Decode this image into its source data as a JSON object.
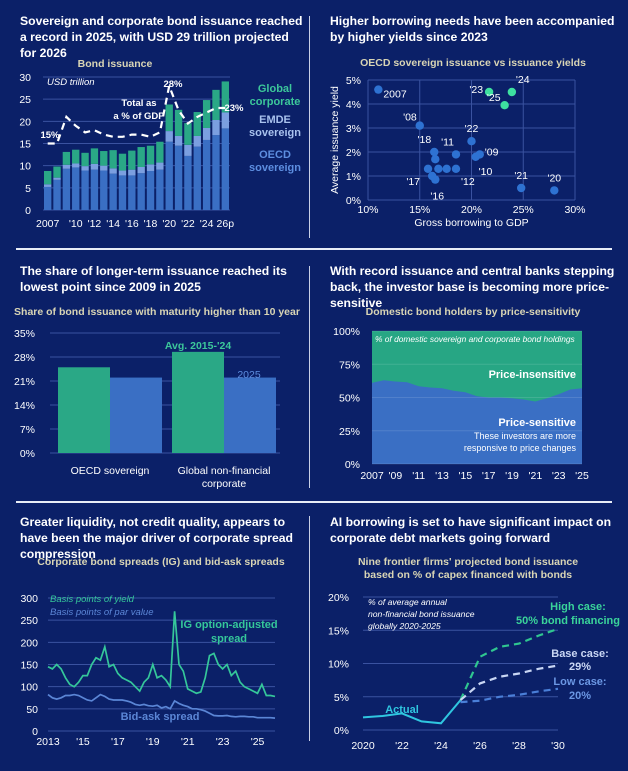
{
  "colors": {
    "background": "#0b2068",
    "green": "#2aa886",
    "green_text": "#3cc79a",
    "blue": "#3a6fc4",
    "light_blue": "#7b9fe0",
    "grid": "#3a52a0",
    "subtitle": "#d9d5b5"
  },
  "panels": [
    {
      "title": "Sovereign and corporate bond issuance reached a record in 2025, with USD 29 trillion projected for 2026",
      "subtitle": "Bond issuance"
    },
    {
      "title": "Higher borrowing needs have been accompanied by higher yields since 2023",
      "subtitle": "OECD sovereign issuance vs issuance yields"
    },
    {
      "title": "The share of longer-term issuance reached its lowest point since 2009 in 2025",
      "subtitle": "Share of bond issuance with maturity higher than 10 year"
    },
    {
      "title": "With record issuance and central banks stepping back, the investor base is becoming more price-sensitive",
      "subtitle": "Domestic bond holders by price-sensitivity"
    },
    {
      "title": "Greater liquidity, not credit quality, appears to have been the major driver of corporate spread compression",
      "subtitle": "Corporate bond spreads (IG) and bid-ask spreads"
    },
    {
      "title": "AI borrowing is set to have significant impact on corporate debt markets going forward",
      "subtitle": "Nine frontier firms' projected bond issuance based on % of capex financed with bonds"
    }
  ],
  "chart_data": [
    {
      "type": "bar",
      "stacked": true,
      "title": "Bond issuance",
      "unit_label": "USD trillion",
      "ylim": [
        0,
        30
      ],
      "yticks": [
        0,
        5,
        10,
        15,
        20,
        25,
        30
      ],
      "categories": [
        "2007",
        "2008",
        "2009",
        "2010",
        "2011",
        "2012",
        "2013",
        "2014",
        "2015",
        "2016",
        "2017",
        "2018",
        "2019",
        "2020",
        "2021",
        "2022",
        "2023",
        "2024",
        "2025",
        "2026p"
      ],
      "x_ticks": [
        {
          "label": "2007",
          "index": 0
        },
        {
          "label": "'10",
          "index": 3
        },
        {
          "label": "'12",
          "index": 5
        },
        {
          "label": "'14",
          "index": 7
        },
        {
          "label": "'16",
          "index": 9
        },
        {
          "label": "'18",
          "index": 11
        },
        {
          "label": "'20",
          "index": 13
        },
        {
          "label": "'22",
          "index": 15
        },
        {
          "label": "'24",
          "index": 17
        },
        {
          "label": "26p",
          "index": 19
        }
      ],
      "series": [
        {
          "name": "OECD sovereign",
          "legend": [
            "OECD",
            "sovereign"
          ],
          "values": [
            5.2,
            6.8,
            9.3,
            9.6,
            8.9,
            9.1,
            8.9,
            8.2,
            7.8,
            7.8,
            8.3,
            8.8,
            9.1,
            15.4,
            14.5,
            12.2,
            14.3,
            15.8,
            16.9,
            18.4
          ]
        },
        {
          "name": "EMDE sovereign",
          "legend": [
            "EMDE",
            "sovereign"
          ],
          "values": [
            0.6,
            0.5,
            0.9,
            0.9,
            1.0,
            1.3,
            1.1,
            1.2,
            1.1,
            1.3,
            1.4,
            1.5,
            1.6,
            2.4,
            2.2,
            2.5,
            2.4,
            2.7,
            3.4,
            3.6
          ]
        },
        {
          "name": "Global corporate",
          "legend": [
            "Global",
            "corporate"
          ],
          "values": [
            3.0,
            2.5,
            2.9,
            3.1,
            3.0,
            3.5,
            3.3,
            4.1,
            3.8,
            4.3,
            4.5,
            4.2,
            4.7,
            6.0,
            5.9,
            4.9,
            5.4,
            6.3,
            6.8,
            7.0
          ]
        }
      ],
      "gdp_line": {
        "name": "Total as a % of GDP",
        "label_lines": [
          "Total as",
          "a % of GDP"
        ],
        "values": [
          15,
          15,
          21,
          19,
          17.5,
          18,
          17,
          16.5,
          16.5,
          17,
          17,
          16.5,
          17.5,
          28,
          22.5,
          19.5,
          21,
          22,
          23,
          23
        ],
        "annotations": [
          "15%",
          "28%",
          "23%"
        ]
      }
    },
    {
      "type": "scatter",
      "title": "OECD sovereign issuance vs issuance yields",
      "xlabel": "Gross borrowing to GDP",
      "ylabel": "Average issuance yield",
      "xlim": [
        10,
        30
      ],
      "ylim": [
        0,
        5
      ],
      "xticks": [
        "10%",
        "15%",
        "20%",
        "25%",
        "30%"
      ],
      "yticks": [
        "0%",
        "1%",
        "2%",
        "3%",
        "4%",
        "5%"
      ],
      "points": [
        {
          "label": "2007",
          "x": 11,
          "y": 4.6,
          "highlight": false
        },
        {
          "label": "'08",
          "x": 15,
          "y": 3.1,
          "highlight": false
        },
        {
          "label": "'09",
          "x": 20.8,
          "y": 1.9,
          "highlight": false
        },
        {
          "label": "'10",
          "x": 20.4,
          "y": 1.8,
          "highlight": false
        },
        {
          "label": "'11",
          "x": 18.5,
          "y": 1.9,
          "highlight": false
        },
        {
          "label": "'12",
          "x": 18.5,
          "y": 1.3,
          "highlight": false
        },
        {
          "label": "",
          "x": 17.6,
          "y": 1.3,
          "highlight": false
        },
        {
          "label": "",
          "x": 16.8,
          "y": 1.3,
          "highlight": false
        },
        {
          "label": "'16",
          "x": 16.5,
          "y": 0.85,
          "highlight": false
        },
        {
          "label": "'17",
          "x": 15.8,
          "y": 1.3,
          "highlight": false
        },
        {
          "label": "'18",
          "x": 16.4,
          "y": 2.0,
          "highlight": false
        },
        {
          "label": "",
          "x": 16.5,
          "y": 1.7,
          "highlight": false
        },
        {
          "label": "",
          "x": 16.2,
          "y": 1.0,
          "highlight": false
        },
        {
          "label": "'20",
          "x": 28,
          "y": 0.4,
          "highlight": false
        },
        {
          "label": "'21",
          "x": 24.8,
          "y": 0.5,
          "highlight": false
        },
        {
          "label": "'22",
          "x": 20,
          "y": 2.45,
          "highlight": false
        },
        {
          "label": "'23",
          "x": 21.7,
          "y": 4.5,
          "highlight": true
        },
        {
          "label": "'24",
          "x": 23.9,
          "y": 4.5,
          "highlight": true
        },
        {
          "label": "'25",
          "x": 23.2,
          "y": 3.95,
          "highlight": true
        }
      ]
    },
    {
      "type": "bar",
      "title": "Share of bond issuance with maturity higher than 10 year",
      "ylim": [
        0,
        35
      ],
      "yticks": [
        "0%",
        "7%",
        "14%",
        "21%",
        "28%",
        "35%"
      ],
      "categories": [
        [
          "OECD sovereign"
        ],
        [
          "Global non-financial",
          "corporate"
        ]
      ],
      "series": [
        {
          "name": "Avg. 2015-'24",
          "values": [
            25,
            29.5
          ]
        },
        {
          "name": "2025",
          "values": [
            22,
            22
          ]
        }
      ]
    },
    {
      "type": "area",
      "stacked": true,
      "title": "Domestic bond holders by price-sensitivity",
      "unit_label": "% of domestic sovereign and corporate bond holdings",
      "ylim": [
        0,
        100
      ],
      "yticks": [
        "0%",
        "25%",
        "50%",
        "75%",
        "100%"
      ],
      "x": [
        2007,
        2008,
        2009,
        2010,
        2011,
        2012,
        2013,
        2014,
        2015,
        2016,
        2017,
        2018,
        2019,
        2020,
        2021,
        2022,
        2023,
        2024,
        2025
      ],
      "x_ticks": [
        "2007",
        "'09",
        "'11",
        "'13",
        "'15",
        "'17",
        "'19",
        "'21",
        "'23",
        "'25"
      ],
      "series": [
        {
          "name": "Price-sensitive",
          "note": [
            "These investors are more",
            "responsive to price changes"
          ],
          "values": [
            61,
            63,
            62,
            61.5,
            58.5,
            57.5,
            57,
            55,
            54,
            51,
            50,
            50,
            49.5,
            48.5,
            47,
            49.5,
            52.5,
            56,
            57
          ]
        },
        {
          "name": "Price-insensitive",
          "values_complement_to": 100
        }
      ]
    },
    {
      "type": "line",
      "title": "Corporate bond spreads (IG) and bid-ask spreads",
      "ylim": [
        0,
        300
      ],
      "yticks": [
        "0",
        "50",
        "100",
        "150",
        "200",
        "250",
        "300"
      ],
      "x_range": [
        2013,
        2026
      ],
      "x_ticks": [
        "2013",
        "'15",
        "'17",
        "'19",
        "'21",
        "'23",
        "'25"
      ],
      "legend": [
        "Basis points of yield",
        "Basis points of par value"
      ],
      "series": [
        {
          "name": "IG option-adjusted spread",
          "label_lines": [
            "IG option-adjusted",
            "spread"
          ],
          "frequency": "quarterly",
          "values": [
            145,
            140,
            150,
            140,
            120,
            105,
            100,
            110,
            125,
            125,
            150,
            165,
            160,
            190,
            145,
            150,
            130,
            120,
            115,
            110,
            100,
            90,
            110,
            120,
            150,
            120,
            125,
            115,
            100,
            270,
            150,
            135,
            95,
            90,
            85,
            88,
            120,
            170,
            175,
            150,
            140,
            150,
            125,
            135,
            110,
            100,
            95,
            90,
            85,
            105,
            80,
            80,
            78
          ]
        },
        {
          "name": "Bid-ask spread",
          "label_lines": [
            "Bid-ask spread"
          ],
          "frequency": "quarterly",
          "values": [
            82,
            75,
            72,
            75,
            80,
            80,
            82,
            80,
            75,
            70,
            68,
            75,
            82,
            78,
            72,
            70,
            70,
            70,
            68,
            65,
            60,
            58,
            60,
            57,
            56,
            58,
            52,
            55,
            50,
            68,
            62,
            58,
            55,
            50,
            50,
            48,
            45,
            40,
            35,
            34,
            34,
            35,
            33,
            32,
            33,
            33,
            32,
            32,
            30,
            30,
            30,
            30,
            29
          ]
        }
      ]
    },
    {
      "type": "line",
      "title": "Nine frontier firms' projected bond issuance based on % of capex financed with bonds",
      "unit_label": [
        "% of average annual",
        "non-financial bond issuance",
        "globally 2020-2025"
      ],
      "ylim": [
        0,
        20
      ],
      "yticks": [
        "0%",
        "5%",
        "10%",
        "15%",
        "20%"
      ],
      "x_range": [
        2020,
        2030
      ],
      "x_ticks": [
        "2020",
        "'22",
        "'24",
        "'26",
        "'28",
        "'30"
      ],
      "series": [
        {
          "name": "Actual",
          "label_lines": [
            "Actual"
          ],
          "dashed": false,
          "x": [
            2020,
            2021,
            2022,
            2023,
            2024,
            2025
          ],
          "values": [
            1.9,
            2.1,
            2.5,
            1.3,
            1.0,
            4.5
          ]
        },
        {
          "name": "High case",
          "label_lines": [
            "High case:",
            "50% bond financing"
          ],
          "dashed": true,
          "x": [
            2025,
            2026,
            2027,
            2028,
            2029,
            2030
          ],
          "values": [
            4.5,
            11,
            12.5,
            13,
            14.2,
            15.2
          ]
        },
        {
          "name": "Base case",
          "label_lines": [
            "Base case:",
            "29%"
          ],
          "dashed": true,
          "x": [
            2025,
            2026,
            2027,
            2028,
            2029,
            2030
          ],
          "values": [
            4.5,
            7,
            8,
            8.5,
            9.2,
            9.7
          ]
        },
        {
          "name": "Low case",
          "label_lines": [
            "Low case:",
            "20%"
          ],
          "dashed": true,
          "x": [
            2025,
            2026,
            2027,
            2028,
            2029,
            2030
          ],
          "values": [
            4.2,
            4.4,
            5,
            5.3,
            5.8,
            6.2
          ]
        }
      ]
    }
  ]
}
